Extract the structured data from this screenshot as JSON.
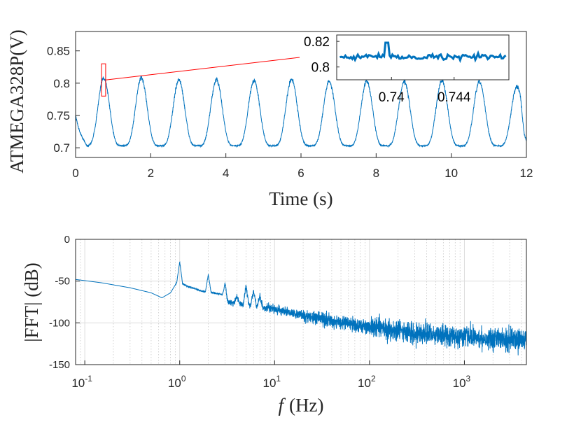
{
  "chart_data": [
    {
      "type": "line",
      "xlabel": "Time (s)",
      "ylabel": "ATMEGA328P(V)",
      "xlim": [
        0,
        12
      ],
      "ylim": [
        0.685,
        0.88
      ],
      "xticks": [
        0,
        2,
        4,
        6,
        8,
        10,
        12
      ],
      "xtick_labels": [
        "0",
        "2",
        "4",
        "6",
        "8",
        "10",
        "12"
      ],
      "yticks": [
        0.7,
        0.75,
        0.8,
        0.85
      ],
      "ytick_labels": [
        "0.7",
        "0.75",
        "0.8",
        "0.85"
      ],
      "grid": false,
      "series_color": "#0072bd",
      "annotation_color": "#ff0000",
      "peaks": [
        {
          "t": 0.75,
          "v": 0.808
        },
        {
          "t": 1.75,
          "v": 0.808
        },
        {
          "t": 2.75,
          "v": 0.805
        },
        {
          "t": 3.75,
          "v": 0.805
        },
        {
          "t": 4.75,
          "v": 0.804
        },
        {
          "t": 5.75,
          "v": 0.806
        },
        {
          "t": 6.75,
          "v": 0.803
        },
        {
          "t": 7.75,
          "v": 0.803
        },
        {
          "t": 8.75,
          "v": 0.802
        },
        {
          "t": 9.75,
          "v": 0.804
        },
        {
          "t": 10.75,
          "v": 0.802
        },
        {
          "t": 11.75,
          "v": 0.795
        }
      ],
      "baseline_v": 0.703,
      "start_v": 0.735,
      "end_v": 0.712,
      "zoom_box": {
        "t_range": [
          0.69,
          0.8
        ],
        "v_range": [
          0.78,
          0.83
        ]
      },
      "inset": {
        "xlim": [
          0.7365,
          0.7475
        ],
        "ylim": [
          0.79,
          0.825
        ],
        "xticks": [
          0.74,
          0.744
        ],
        "xtick_labels": [
          "0.74",
          "0.744"
        ],
        "yticks": [
          0.8,
          0.82
        ],
        "ytick_labels": [
          "0.8",
          "0.82"
        ],
        "level_v": 0.808,
        "spike": {
          "t": 0.7397,
          "v": 0.819
        }
      }
    },
    {
      "type": "line",
      "xlabel": "f (Hz)",
      "xlabel_italic": "f",
      "xlabel_rest": "(Hz)",
      "ylabel": "|FFT| (dB)",
      "xscale": "log",
      "xlim": [
        0.08,
        4500
      ],
      "ylim": [
        -150,
        0
      ],
      "xticks": [
        0.1,
        1,
        10,
        100,
        1000
      ],
      "xtick_bases": [
        "10",
        "10",
        "10",
        "10",
        "10"
      ],
      "xtick_exponents": [
        "-1",
        "0",
        "1",
        "2",
        "3"
      ],
      "yticks": [
        0,
        -50,
        -100,
        -150
      ],
      "ytick_labels": [
        "0",
        "-50",
        "-100",
        "-150"
      ],
      "grid": true,
      "series_color": "#0072bd",
      "envelope": [
        {
          "f": 0.08,
          "db": -48
        },
        {
          "f": 0.15,
          "db": -52
        },
        {
          "f": 0.3,
          "db": -58
        },
        {
          "f": 0.5,
          "db": -64
        },
        {
          "f": 0.65,
          "db": -70
        },
        {
          "f": 0.8,
          "db": -64
        },
        {
          "f": 0.95,
          "db": -50
        },
        {
          "f": 1.2,
          "db": -56
        },
        {
          "f": 1.7,
          "db": -62
        },
        {
          "f": 2.8,
          "db": -66
        },
        {
          "f": 3.0,
          "db": -75
        },
        {
          "f": 5,
          "db": -78
        },
        {
          "f": 10,
          "db": -84
        },
        {
          "f": 30,
          "db": -95
        },
        {
          "f": 100,
          "db": -105
        },
        {
          "f": 300,
          "db": -112
        },
        {
          "f": 1000,
          "db": -117
        },
        {
          "f": 4500,
          "db": -120
        }
      ],
      "peaks": [
        {
          "f": 1.0,
          "db": -27
        },
        {
          "f": 2.0,
          "db": -42
        },
        {
          "f": 3.0,
          "db": -52
        },
        {
          "f": 4.0,
          "db": -68
        },
        {
          "f": 5.0,
          "db": -56
        },
        {
          "f": 6.0,
          "db": -62
        },
        {
          "f": 7.0,
          "db": -68
        }
      ]
    }
  ]
}
